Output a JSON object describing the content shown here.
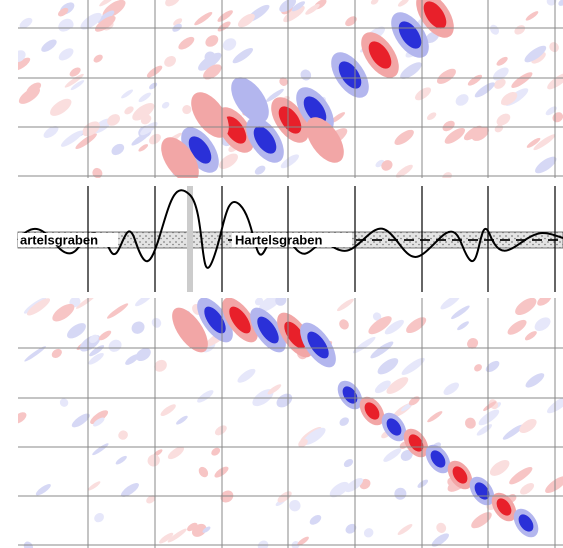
{
  "labels": {
    "left": "artelsgraben",
    "middle": "Hartelsgraben"
  }
}
